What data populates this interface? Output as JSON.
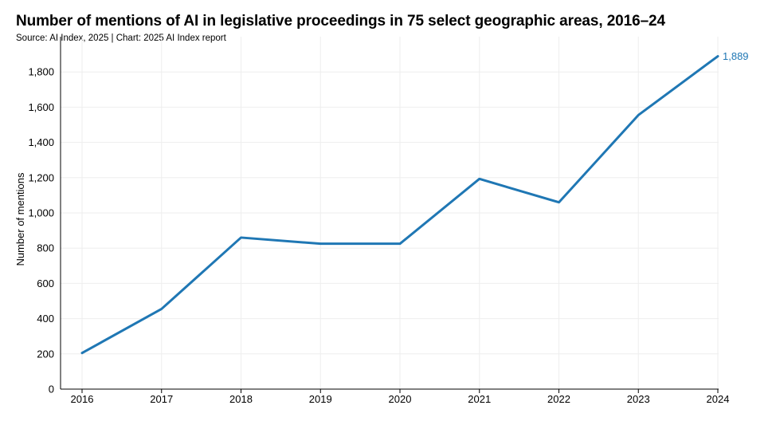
{
  "title": "Number of mentions of AI in legislative proceedings in 75 select geographic areas, 2016–24",
  "source": "Source: AI Index, 2025 | Chart: 2025 AI Index report",
  "colors": {
    "line": "#1f77b4",
    "grid": "#eeeeee",
    "axis": "#000000"
  },
  "chart_data": {
    "type": "line",
    "title": "Number of mentions of AI in legislative proceedings in 75 select geographic areas, 2016–24",
    "xlabel": "",
    "ylabel": "Number of mentions",
    "categories": [
      "2016",
      "2017",
      "2018",
      "2019",
      "2020",
      "2021",
      "2022",
      "2023",
      "2024"
    ],
    "series": [
      {
        "name": "Mentions of AI",
        "values": [
          205,
          455,
          860,
          825,
          825,
          1193,
          1060,
          1555,
          1889
        ]
      }
    ],
    "ylim": [
      0,
      2000
    ],
    "yticks": [
      0,
      200,
      400,
      600,
      800,
      1000,
      1200,
      1400,
      1600,
      1800
    ],
    "ytick_labels": [
      "0",
      "200",
      "400",
      "600",
      "800",
      "1,000",
      "1,200",
      "1,400",
      "1,600",
      "1,800"
    ],
    "data_labels": [
      {
        "index": 8,
        "text": "1,889"
      }
    ],
    "grid": true,
    "legend": "none"
  }
}
